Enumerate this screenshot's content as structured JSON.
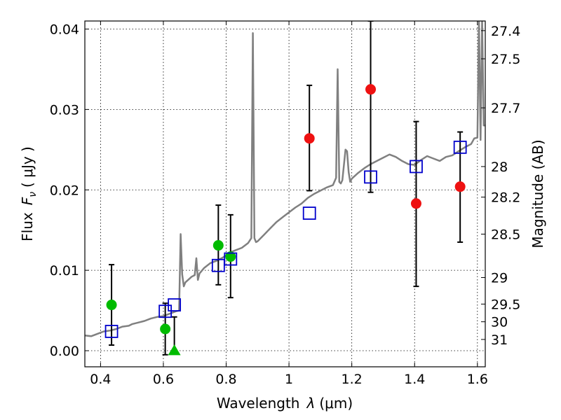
{
  "chart_data": {
    "type": "scatter",
    "title": "",
    "xlabel_prefix": "Wavelength",
    "xlabel_symbol": "λ",
    "xlabel_unit": "(μm)",
    "ylabel_prefix": "Flux",
    "ylabel_symbol": "F",
    "ylabel_subscript": "ν",
    "ylabel_unit": "( μJy )",
    "y2label": "Magnitude (AB)",
    "xlim": [
      0.35,
      1.625
    ],
    "ylim": [
      -0.002,
      0.041
    ],
    "grid": true,
    "x_ticks": [
      0.4,
      0.6,
      0.8,
      1.0,
      1.2,
      1.4,
      1.6
    ],
    "x_tick_labels": [
      "0.4",
      "0.6",
      "0.8",
      "1",
      "1.2",
      "1.4",
      "1.6"
    ],
    "y_ticks": [
      0.0,
      0.01,
      0.02,
      0.03,
      0.04
    ],
    "y_tick_labels": [
      "0.00",
      "0.01",
      "0.02",
      "0.03",
      "0.04"
    ],
    "y2_ticks": [
      {
        "mag": "27.4",
        "flux": 0.0398
      },
      {
        "mag": "27.5",
        "flux": 0.0363
      },
      {
        "mag": "27.7",
        "flux": 0.0302
      },
      {
        "mag": "28",
        "flux": 0.0229
      },
      {
        "mag": "28.2",
        "flux": 0.0191
      },
      {
        "mag": "28.5",
        "flux": 0.0145
      },
      {
        "mag": "29",
        "flux": 0.0091
      },
      {
        "mag": "29.5",
        "flux": 0.0058
      },
      {
        "mag": "30",
        "flux": 0.0036
      },
      {
        "mag": "31",
        "flux": 0.0014
      }
    ],
    "model_spectrum": {
      "color": "#808080",
      "x": [
        0.35,
        0.37,
        0.39,
        0.41,
        0.43,
        0.45,
        0.47,
        0.49,
        0.5,
        0.52,
        0.54,
        0.56,
        0.58,
        0.6,
        0.62,
        0.64,
        0.65,
        0.655,
        0.66,
        0.665,
        0.67,
        0.69,
        0.7,
        0.705,
        0.71,
        0.715,
        0.73,
        0.75,
        0.77,
        0.79,
        0.81,
        0.83,
        0.85,
        0.87,
        0.88,
        0.885,
        0.89,
        0.895,
        0.9,
        0.92,
        0.94,
        0.96,
        0.98,
        1.0,
        1.02,
        1.04,
        1.06,
        1.08,
        1.1,
        1.12,
        1.14,
        1.15,
        1.155,
        1.16,
        1.165,
        1.17,
        1.18,
        1.185,
        1.19,
        1.195,
        1.2,
        1.22,
        1.24,
        1.26,
        1.28,
        1.3,
        1.32,
        1.34,
        1.36,
        1.38,
        1.4,
        1.42,
        1.44,
        1.46,
        1.48,
        1.5,
        1.52,
        1.54,
        1.56,
        1.58,
        1.59,
        1.6,
        1.605,
        1.61,
        1.615,
        1.62,
        1.625
      ],
      "y": [
        0.0019,
        0.0018,
        0.0021,
        0.0024,
        0.0025,
        0.0027,
        0.003,
        0.0031,
        0.0033,
        0.0035,
        0.0037,
        0.004,
        0.0042,
        0.0043,
        0.0046,
        0.0049,
        0.005,
        0.0145,
        0.0095,
        0.008,
        0.0085,
        0.0092,
        0.0094,
        0.0115,
        0.0088,
        0.0096,
        0.0103,
        0.0109,
        0.0112,
        0.0116,
        0.0122,
        0.0125,
        0.0128,
        0.0134,
        0.014,
        0.0395,
        0.014,
        0.0135,
        0.0136,
        0.0144,
        0.0152,
        0.016,
        0.0166,
        0.0172,
        0.0178,
        0.0183,
        0.019,
        0.0195,
        0.0199,
        0.0203,
        0.0206,
        0.0215,
        0.035,
        0.021,
        0.0208,
        0.0212,
        0.025,
        0.0248,
        0.0222,
        0.021,
        0.0214,
        0.0221,
        0.0227,
        0.0232,
        0.0236,
        0.024,
        0.0244,
        0.0241,
        0.0236,
        0.0232,
        0.0231,
        0.0237,
        0.0242,
        0.0239,
        0.0236,
        0.0241,
        0.0243,
        0.0248,
        0.0253,
        0.0257,
        0.0264,
        0.0265,
        0.0412,
        0.0262,
        0.0412,
        0.028,
        0.028
      ]
    },
    "series": [
      {
        "marker": "circle",
        "color": "#00bb00",
        "points": [
          {
            "x": 0.435,
            "y": 0.0057,
            "yerr_low": 0.0007,
            "yerr_high": 0.0107
          },
          {
            "x": 0.606,
            "y": 0.0027,
            "yerr_low": -0.0005,
            "yerr_high": 0.0059
          },
          {
            "x": 0.775,
            "y": 0.0131,
            "yerr_low": 0.0082,
            "yerr_high": 0.0181
          },
          {
            "x": 0.814,
            "y": 0.0117,
            "yerr_low": 0.0066,
            "yerr_high": 0.0169
          }
        ]
      },
      {
        "marker": "triangle",
        "color": "#00bb00",
        "points": [
          {
            "x": 0.635,
            "y": 0.0,
            "yerr_low": 0.0,
            "yerr_high": 0.0042
          }
        ]
      },
      {
        "marker": "circle",
        "color": "#ee1111",
        "points": [
          {
            "x": 1.065,
            "y": 0.0264,
            "yerr_low": 0.0199,
            "yerr_high": 0.033
          },
          {
            "x": 1.26,
            "y": 0.0325,
            "yerr_low": 0.0197,
            "yerr_high": 0.041
          },
          {
            "x": 1.405,
            "y": 0.0183,
            "yerr_low": 0.008,
            "yerr_high": 0.0285
          },
          {
            "x": 1.545,
            "y": 0.0204,
            "yerr_low": 0.0135,
            "yerr_high": 0.0272
          }
        ]
      },
      {
        "marker": "open-square",
        "color": "#0000cc",
        "points": [
          {
            "x": 0.435,
            "y": 0.0024
          },
          {
            "x": 0.606,
            "y": 0.0049
          },
          {
            "x": 0.635,
            "y": 0.0057
          },
          {
            "x": 0.775,
            "y": 0.0106
          },
          {
            "x": 0.814,
            "y": 0.0114
          },
          {
            "x": 1.065,
            "y": 0.0171
          },
          {
            "x": 1.26,
            "y": 0.0216
          },
          {
            "x": 1.405,
            "y": 0.0229
          },
          {
            "x": 1.545,
            "y": 0.0253
          }
        ]
      }
    ]
  }
}
